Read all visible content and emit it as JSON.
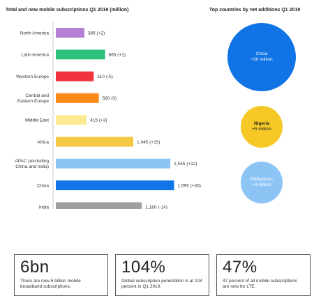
{
  "chart_data": {
    "type": "bar",
    "title": "Total and new mobile subscriptions Q1 2019 (million)",
    "orientation": "horizontal",
    "categories": [
      [
        "North America"
      ],
      [
        "Latin America"
      ],
      [
        "Western Europe"
      ],
      [
        "Central and",
        "Eastern Europe"
      ],
      [
        "Middle East"
      ],
      [
        "Africa"
      ],
      [
        "APAC (excluding",
        "China and India)"
      ],
      [
        "China"
      ],
      [
        "India"
      ]
    ],
    "values": [
      385,
      665,
      510,
      580,
      415,
      1045,
      1545,
      1595,
      1160
    ],
    "value_labels": [
      "385 (+2)",
      "665 (+1)",
      "510 (-5)",
      "580 (0)",
      "415 (+3)",
      "1,045 (+15)",
      "1,545 (+12)",
      "1,595 (+30)",
      "1,160 (-14)"
    ],
    "colors": [
      "#b57fd6",
      "#2ec27e",
      "#f0323c",
      "#ff8c1a",
      "#faea96",
      "#f5c842",
      "#8cc4f5",
      "#1174e6",
      "#a0a0a0"
    ]
  },
  "bubbles": {
    "title": "Top countries by net additions Q1 2019",
    "items": [
      {
        "name": "China",
        "value_text": "+30 million",
        "value": 30,
        "color": "#1174e6",
        "text_color": "#ffffff"
      },
      {
        "name": "Nigeria",
        "value_text": "+5 million",
        "value": 5,
        "color": "#f5c825",
        "text_color": "#222222"
      },
      {
        "name": "Philippines",
        "value_text": "+4 million",
        "value": 4,
        "color": "#8cc4f5",
        "text_color": "#ffffff"
      }
    ]
  },
  "stats": [
    {
      "big": "6bn",
      "text": "There are now 6 billion mobile broadband subscriptions."
    },
    {
      "big": "104%",
      "text": "Global subscription penetration is at 104 percent in Q1 2019."
    },
    {
      "big": "47%",
      "text": "47 percent of all mobile subscriptions are now for LTE."
    }
  ]
}
